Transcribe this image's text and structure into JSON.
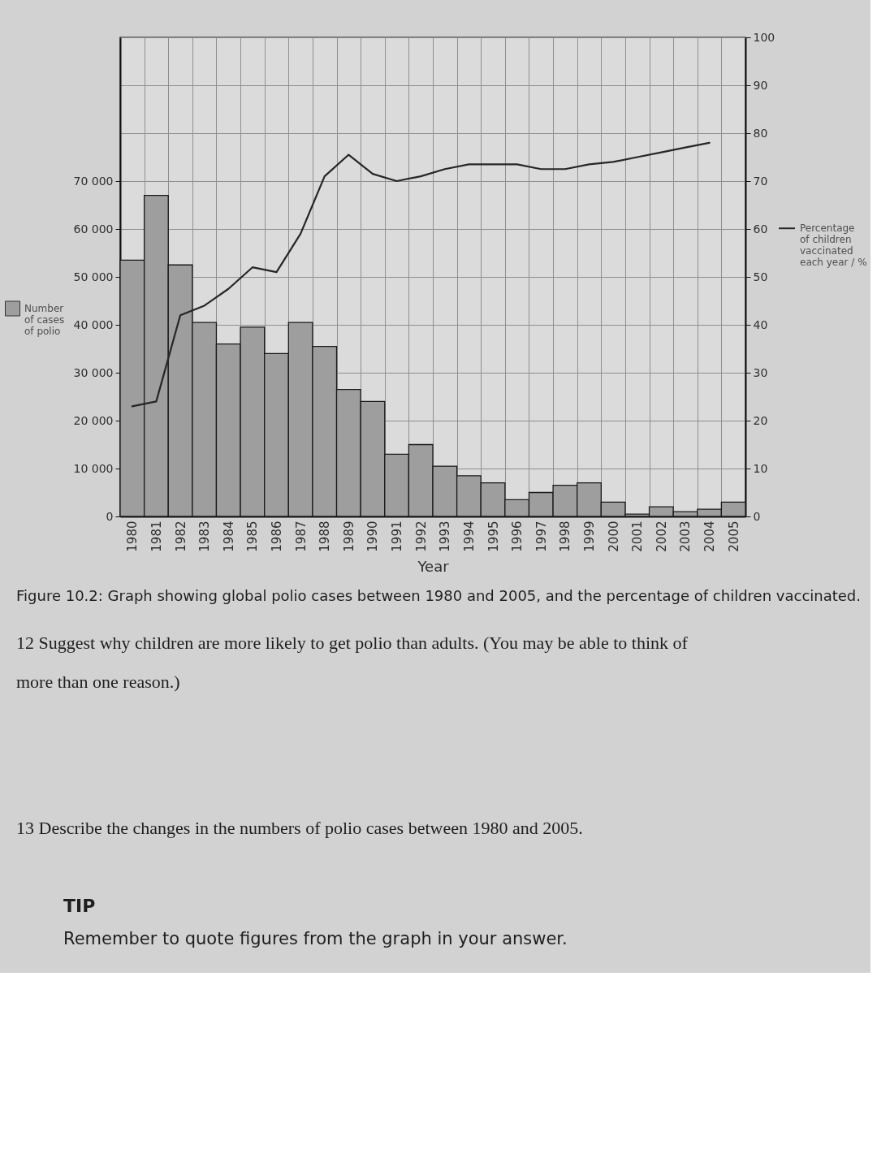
{
  "chart_data": {
    "type": "bar",
    "xlabel": "Year",
    "categories": [
      "1980",
      "1981",
      "1982",
      "1983",
      "1984",
      "1985",
      "1986",
      "1987",
      "1988",
      "1989",
      "1990",
      "1991",
      "1992",
      "1993",
      "1994",
      "1995",
      "1996",
      "1997",
      "1998",
      "1999",
      "2000",
      "2001",
      "2002",
      "2003",
      "2004",
      "2005"
    ],
    "series": [
      {
        "name": "Number of cases of polio",
        "color": "#9e9e9e",
        "values": [
          53500,
          67000,
          52500,
          40500,
          36000,
          39500,
          34000,
          40500,
          35500,
          26500,
          24000,
          13000,
          15000,
          10500,
          8500,
          7000,
          3500,
          5000,
          6500,
          7000,
          3000,
          500,
          2000,
          1000,
          1500,
          3000
        ]
      },
      {
        "name": "Percentage of children vaccinated each year / %",
        "type": "line",
        "axis": "y2",
        "color": "#262626",
        "values": [
          23,
          24,
          42,
          44,
          47.5,
          52,
          51,
          59,
          71,
          75.5,
          71.5,
          70,
          71,
          72.5,
          73.5,
          73.5,
          73.5,
          72.5,
          72.5,
          73.5,
          74,
          75,
          76,
          77,
          78,
          null
        ]
      }
    ],
    "ylim": [
      0,
      100000
    ],
    "yticks": [
      0,
      {
        "value": 10000,
        "label": "10 000"
      },
      {
        "value": 20000,
        "label": "20 000"
      },
      {
        "value": 30000,
        "label": "30 000"
      },
      {
        "value": 40000,
        "label": "40 000"
      },
      {
        "value": 50000,
        "label": "50 000"
      },
      {
        "value": 60000,
        "label": "60 000"
      },
      {
        "value": 70000,
        "label": "70 000"
      }
    ],
    "y2lim": [
      0,
      100
    ],
    "y2ticks": [
      0,
      10,
      20,
      30,
      40,
      50,
      60,
      70,
      80,
      90,
      100
    ],
    "grid": true,
    "legend": "right",
    "annotations": [
      "Figure 10.2: Graph showing global polio cases between 1980 and 2005, and the percentage of children vaccinated.",
      "12 Suggest why children are more likely to get polio than adults. (You may be able to think of more than one reason.)",
      "13 Describe the changes in the numbers of polio cases between 1980 and 2005.",
      "TIP",
      "Remember to quote figures from the graph in your answer."
    ]
  }
}
